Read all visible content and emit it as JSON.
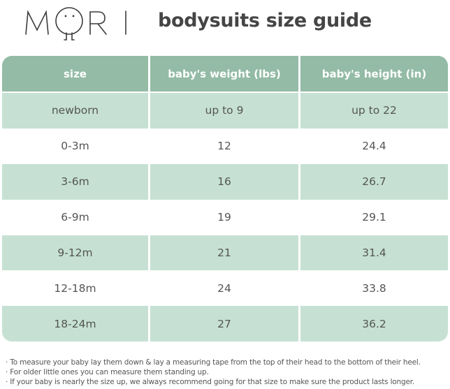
{
  "brand": {
    "logo_text": "MORI"
  },
  "title": "bodysuits size guide",
  "colors": {
    "header": "#93bba5",
    "alt_row": "#c6e1d3",
    "text": "#555555"
  },
  "table": {
    "headers": [
      "size",
      "baby's weight (lbs)",
      "baby's height (in)"
    ],
    "rows": [
      [
        "newborn",
        "up to 9",
        "up to 22"
      ],
      [
        "0-3m",
        "12",
        "24.4"
      ],
      [
        "3-6m",
        "16",
        "26.7"
      ],
      [
        "6-9m",
        "19",
        "29.1"
      ],
      [
        "9-12m",
        "21",
        "31.4"
      ],
      [
        "12-18m",
        "24",
        "33.8"
      ],
      [
        "18-24m",
        "27",
        "36.2"
      ]
    ]
  },
  "notes": [
    "· To measure your baby lay them down & lay a measuring tape from the top of their head to the bottom of their heel.",
    "· For older little ones you can measure them standing up.",
    "· If your baby is nearly the size up, we always recommend going for that size to make sure the product lasts longer."
  ]
}
